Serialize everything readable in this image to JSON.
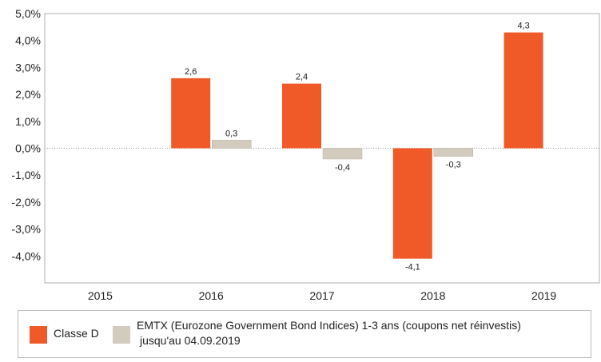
{
  "chart_data": {
    "type": "bar",
    "categories": [
      "2015",
      "2016",
      "2017",
      "2018",
      "2019"
    ],
    "series": [
      {
        "name": "Classe D",
        "color": "#f05a28",
        "values": [
          null,
          2.6,
          2.4,
          -4.1,
          4.3
        ],
        "labels": [
          "",
          "2,6",
          "2,4",
          "-4,1",
          "4,3"
        ]
      },
      {
        "name": "EMTX (Eurozone Government Bond Indices) 1-3 ans (coupons net réinvestis) jusqu'au 04.09.2019",
        "color": "#d3cbbd",
        "values": [
          null,
          0.3,
          -0.4,
          -0.3,
          null
        ],
        "labels": [
          "",
          "0,3",
          "-0,4",
          "-0,3",
          ""
        ]
      }
    ],
    "yticks": [
      5,
      4,
      3,
      2,
      1,
      0,
      -1,
      -2,
      -3,
      -4
    ],
    "ytick_labels": [
      "5,0%",
      "4,0%",
      "3,0%",
      "2,0%",
      "1,0%",
      "0,0%",
      "-1,0%",
      "-2,0%",
      "-3,0%",
      "-4,0%"
    ],
    "ylim": [
      -5,
      5
    ],
    "title": "",
    "xlabel": "",
    "ylabel": "",
    "grid": false,
    "legend_position": "bottom"
  },
  "legend": {
    "item1": "Classe D",
    "item2_line1": "EMTX (Eurozone Government Bond Indices) 1-3 ans (coupons net réinvestis)",
    "item2_line2": "jusqu'au 04.09.2019"
  }
}
